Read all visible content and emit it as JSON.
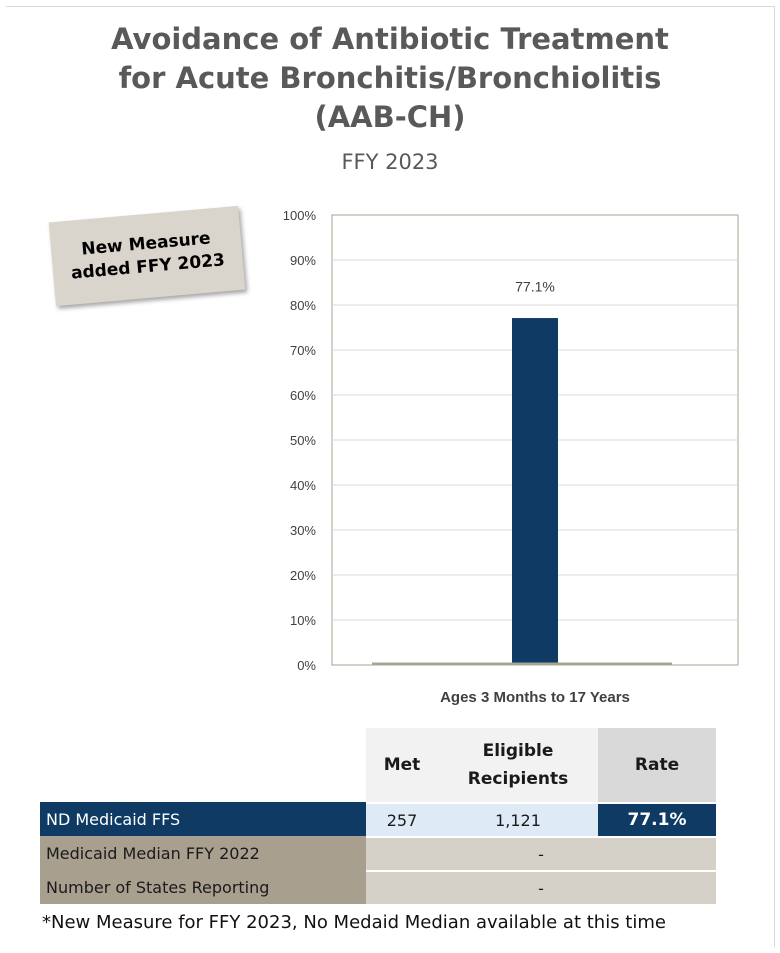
{
  "title_lines": [
    "Avoidance of Antibiotic Treatment",
    "for Acute Bronchitis/Bronchiolitis",
    "(AAB-CH)"
  ],
  "subtitle": "FFY 2023",
  "callout": [
    "New Measure",
    "added FFY 2023"
  ],
  "chart_data": {
    "type": "bar",
    "categories": [
      "Ages 3 Months to 17 Years"
    ],
    "values": [
      77.1
    ],
    "data_labels": [
      "77.1%"
    ],
    "ylim": [
      0,
      100
    ],
    "y_ticks": [
      0,
      10,
      20,
      30,
      40,
      50,
      60,
      70,
      80,
      90,
      100
    ],
    "y_tick_labels": [
      "0%",
      "10%",
      "20%",
      "30%",
      "40%",
      "50%",
      "60%",
      "70%",
      "80%",
      "90%",
      "100%"
    ],
    "grid": true,
    "bar_color": "#0f3a63",
    "gridline_color": "#d9d9d9",
    "axis_color": "#a6a592"
  },
  "table": {
    "headers": [
      "Met",
      "Eligible Recipients",
      "Rate"
    ],
    "rows": [
      {
        "label": "ND Medicaid FFS",
        "met": "257",
        "eligible": "1,121",
        "rate": "77.1%"
      },
      {
        "label": "Medicaid Median FFY 2022",
        "value": "-"
      },
      {
        "label": "Number of States Reporting",
        "value": "-"
      }
    ]
  },
  "footnote": "*New Measure for FFY 2023, No Medaid Median available at this time",
  "colors": {
    "navy": "#0f3a63",
    "light_blue": "#deebf7",
    "tan": "#a89f8f",
    "grey": "#d6d1c8"
  }
}
